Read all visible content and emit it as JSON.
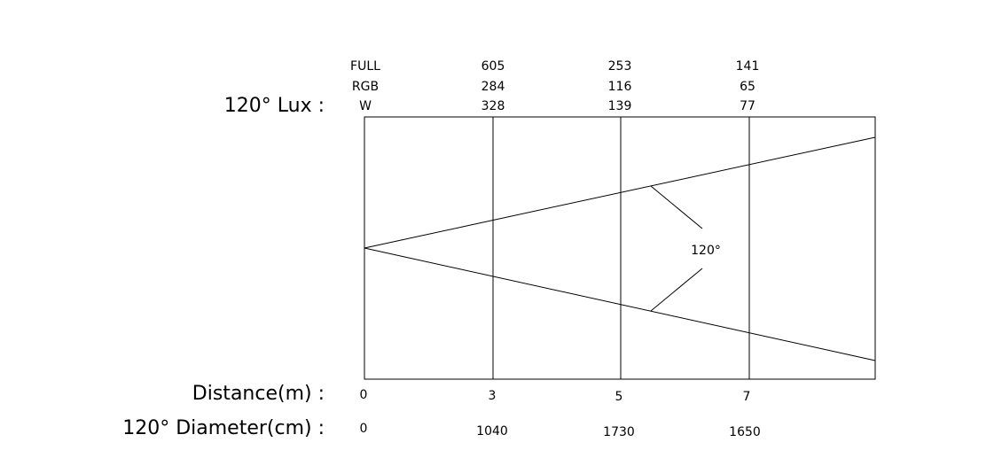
{
  "lux_label": "120° Lux :",
  "rows": {
    "full": {
      "label": "FULL",
      "values": [
        "605",
        "253",
        "141"
      ]
    },
    "rgb": {
      "label": "RGB",
      "values": [
        "284",
        "116",
        "65"
      ]
    },
    "w": {
      "label": "W",
      "values": [
        "328",
        "139",
        "77"
      ]
    }
  },
  "distance": {
    "label": "Distance(m) :",
    "values": [
      "0",
      "3",
      "5",
      "7"
    ]
  },
  "diameter": {
    "label": "120° Diameter(cm) :",
    "values": [
      "0",
      "1040",
      "1730",
      "1650"
    ]
  },
  "beam_angle_label": "120°"
}
